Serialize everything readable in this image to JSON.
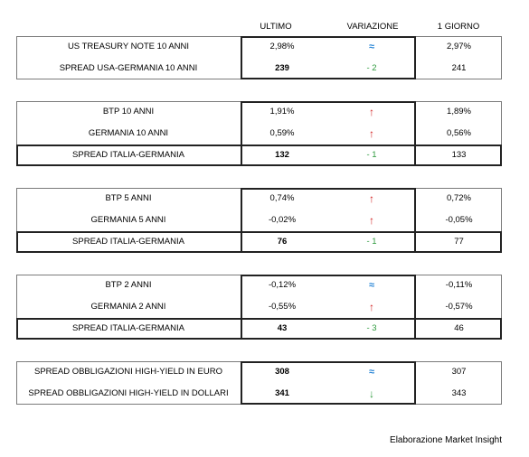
{
  "headers": {
    "last": "ULTIMO",
    "variation": "VARIAZIONE",
    "prev": "1 GIORNO"
  },
  "tables": [
    {
      "rows": [
        {
          "label": "US TREASURY NOTE 10 ANNI",
          "last": "2,98%",
          "var": "≈",
          "var_kind": "approx",
          "prev": "2,97%",
          "highlight": false
        },
        {
          "label": "SPREAD USA-GERMANIA 10 ANNI",
          "last": "239",
          "var": "- 2",
          "var_kind": "neg",
          "prev": "241",
          "highlight": false,
          "bold_last": true
        }
      ]
    },
    {
      "rows": [
        {
          "label": "BTP 10 ANNI",
          "last": "1,91%",
          "var": "↑",
          "var_kind": "up",
          "prev": "1,89%",
          "highlight": false
        },
        {
          "label": "GERMANIA 10 ANNI",
          "last": "0,59%",
          "var": "↑",
          "var_kind": "up",
          "prev": "0,56%",
          "highlight": false
        },
        {
          "label": "SPREAD ITALIA-GERMANIA",
          "last": "132",
          "var": "- 1",
          "var_kind": "neg",
          "prev": "133",
          "highlight": true,
          "bold_last": true
        }
      ]
    },
    {
      "rows": [
        {
          "label": "BTP 5 ANNI",
          "last": "0,74%",
          "var": "↑",
          "var_kind": "up",
          "prev": "0,72%",
          "highlight": false
        },
        {
          "label": "GERMANIA 5 ANNI",
          "last": "-0,02%",
          "var": "↑",
          "var_kind": "up",
          "prev": "-0,05%",
          "highlight": false
        },
        {
          "label": "SPREAD ITALIA-GERMANIA",
          "last": "76",
          "var": "- 1",
          "var_kind": "neg",
          "prev": "77",
          "highlight": true,
          "bold_last": true
        }
      ]
    },
    {
      "rows": [
        {
          "label": "BTP 2 ANNI",
          "last": "-0,12%",
          "var": "≈",
          "var_kind": "approx",
          "prev": "-0,11%",
          "highlight": false
        },
        {
          "label": "GERMANIA 2 ANNI",
          "last": "-0,55%",
          "var": "↑",
          "var_kind": "up",
          "prev": "-0,57%",
          "highlight": false
        },
        {
          "label": "SPREAD ITALIA-GERMANIA",
          "last": "43",
          "var": "- 3",
          "var_kind": "neg",
          "prev": "46",
          "highlight": true,
          "bold_last": true
        }
      ]
    },
    {
      "rows": [
        {
          "label": "SPREAD OBBLIGAZIONI HIGH-YIELD IN EURO",
          "last": "308",
          "var": "≈",
          "var_kind": "approx",
          "prev": "307",
          "highlight": false,
          "bold_last": true
        },
        {
          "label": "SPREAD OBBLIGAZIONI HIGH-YIELD IN DOLLARI",
          "last": "341",
          "var": "↓",
          "var_kind": "down",
          "prev": "343",
          "highlight": false,
          "bold_last": true
        }
      ]
    }
  ],
  "footer": "Elaborazione Market Insight"
}
